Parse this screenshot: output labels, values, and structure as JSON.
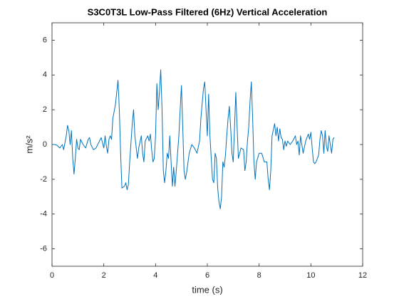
{
  "chart_data": {
    "type": "line",
    "title": "S3C0T3L Low-Pass Filtered (6Hz) Vertical Acceleration",
    "xlabel": "time (s)",
    "ylabel": "m/s²",
    "xlim": [
      0,
      12
    ],
    "xticks": [
      0,
      2,
      4,
      6,
      8,
      10,
      12
    ],
    "ylim": [
      -7,
      7
    ],
    "yticks": [
      -6,
      -4,
      -2,
      0,
      2,
      4,
      6
    ],
    "grid": false,
    "series": [
      {
        "color": "#0072bd",
        "x": [
          0,
          0.1,
          0.2,
          0.3,
          0.4,
          0.45,
          0.55,
          0.6,
          0.65,
          0.7,
          0.75,
          0.8,
          0.85,
          0.9,
          0.95,
          1.0,
          1.05,
          1.1,
          1.2,
          1.3,
          1.4,
          1.45,
          1.5,
          1.6,
          1.7,
          1.8,
          1.9,
          2.0,
          2.05,
          2.1,
          2.15,
          2.2,
          2.25,
          2.3,
          2.35,
          2.45,
          2.5,
          2.55,
          2.6,
          2.65,
          2.7,
          2.8,
          2.85,
          2.9,
          2.95,
          3.0,
          3.1,
          3.15,
          3.2,
          3.3,
          3.35,
          3.45,
          3.5,
          3.55,
          3.6,
          3.7,
          3.75,
          3.8,
          3.85,
          3.9,
          3.95,
          4.0,
          4.05,
          4.1,
          4.15,
          4.2,
          4.25,
          4.3,
          4.35,
          4.4,
          4.45,
          4.5,
          4.55,
          4.6,
          4.65,
          4.7,
          4.75,
          4.8,
          4.85,
          4.9,
          4.95,
          5.0,
          5.05,
          5.1,
          5.15,
          5.2,
          5.3,
          5.4,
          5.5,
          5.6,
          5.7,
          5.75,
          5.85,
          5.9,
          5.95,
          6.0,
          6.05,
          6.1,
          6.2,
          6.25,
          6.3,
          6.35,
          6.4,
          6.45,
          6.5,
          6.55,
          6.6,
          6.65,
          6.7,
          6.75,
          6.8,
          6.85,
          6.9,
          6.95,
          7.0,
          7.05,
          7.1,
          7.15,
          7.2,
          7.3,
          7.4,
          7.45,
          7.5,
          7.55,
          7.6,
          7.65,
          7.7,
          7.75,
          7.8,
          7.85,
          7.9,
          8.0,
          8.1,
          8.2,
          8.3,
          8.35,
          8.4,
          8.45,
          8.5,
          8.6,
          8.65,
          8.7,
          8.75,
          8.8,
          8.85,
          8.9,
          8.95,
          9.0,
          9.05,
          9.1,
          9.2,
          9.3,
          9.4,
          9.45,
          9.5,
          9.55,
          9.6,
          9.65,
          9.7,
          9.8,
          9.9,
          9.95,
          10.0,
          10.05,
          10.1,
          10.15,
          10.2,
          10.3,
          10.35,
          10.4,
          10.45,
          10.5,
          10.55,
          10.6,
          10.65,
          10.7,
          10.8,
          10.85,
          10.9
        ],
        "values": [
          0,
          0,
          -0.05,
          -0.2,
          0,
          -0.3,
          0.5,
          1.1,
          0.8,
          0,
          0.8,
          -0.8,
          -1.7,
          -0.8,
          0.3,
          -0.2,
          -0.3,
          0.3,
          0,
          -0.2,
          0.3,
          0.4,
          0,
          -0.3,
          -0.2,
          0.1,
          0.4,
          -0.2,
          0.5,
          -0.1,
          -0.5,
          0.3,
          0.5,
          0.3,
          1.5,
          2.3,
          3.0,
          3.7,
          2.0,
          -0.5,
          -2.5,
          -2.4,
          -2.2,
          -2.6,
          -2.3,
          -1.0,
          1.2,
          2.0,
          0.5,
          -0.8,
          -0.2,
          0.5,
          -0.5,
          -1.0,
          0.2,
          0.5,
          0.2,
          0.6,
          -0.3,
          -1.0,
          -0.8,
          0.5,
          3.5,
          2.0,
          3.0,
          4.3,
          2.0,
          -1.5,
          -2.2,
          -1.5,
          -0.5,
          -0.8,
          0.5,
          -1.0,
          -2.4,
          -1.3,
          -2.4,
          -1.5,
          -0.5,
          0.5,
          2.0,
          3.4,
          1.0,
          -1.5,
          -2.0,
          -1.6,
          -0.5,
          0,
          -0.2,
          -0.5,
          0.2,
          1.5,
          3.2,
          3.6,
          2.0,
          0.5,
          2.9,
          0.5,
          -2.0,
          -2.2,
          -0.5,
          -0.8,
          -2.5,
          -3.3,
          -3.7,
          -3.0,
          -1.0,
          -1.3,
          -0.6,
          0.5,
          1.5,
          2.2,
          1.0,
          -0.5,
          -1.0,
          1.0,
          3.0,
          1.0,
          -0.8,
          -0.2,
          -0.3,
          -1.5,
          -1.0,
          0.2,
          1.0,
          2.5,
          3.6,
          1.5,
          -1.0,
          -2.0,
          -1.0,
          -0.5,
          -0.5,
          -1.0,
          -1.0,
          -2.0,
          -2.6,
          -1.5,
          0.5,
          1.2,
          0.5,
          1.0,
          0.2,
          0.9,
          0.4,
          0.3,
          -0.3,
          0.2,
          -0.1,
          0.2,
          0,
          0.2,
          0.5,
          0,
          0.2,
          -0.6,
          0.5,
          0,
          -0.5,
          0.2,
          0.6,
          0.3,
          0.7,
          -0.2,
          -1.0,
          -1.1,
          -1.0,
          -0.6,
          0.3,
          0.8,
          0.5,
          -0.5,
          0.8,
          -0.1,
          -0.4,
          0.5,
          -0.5,
          0.3,
          0.4
        ]
      }
    ]
  }
}
